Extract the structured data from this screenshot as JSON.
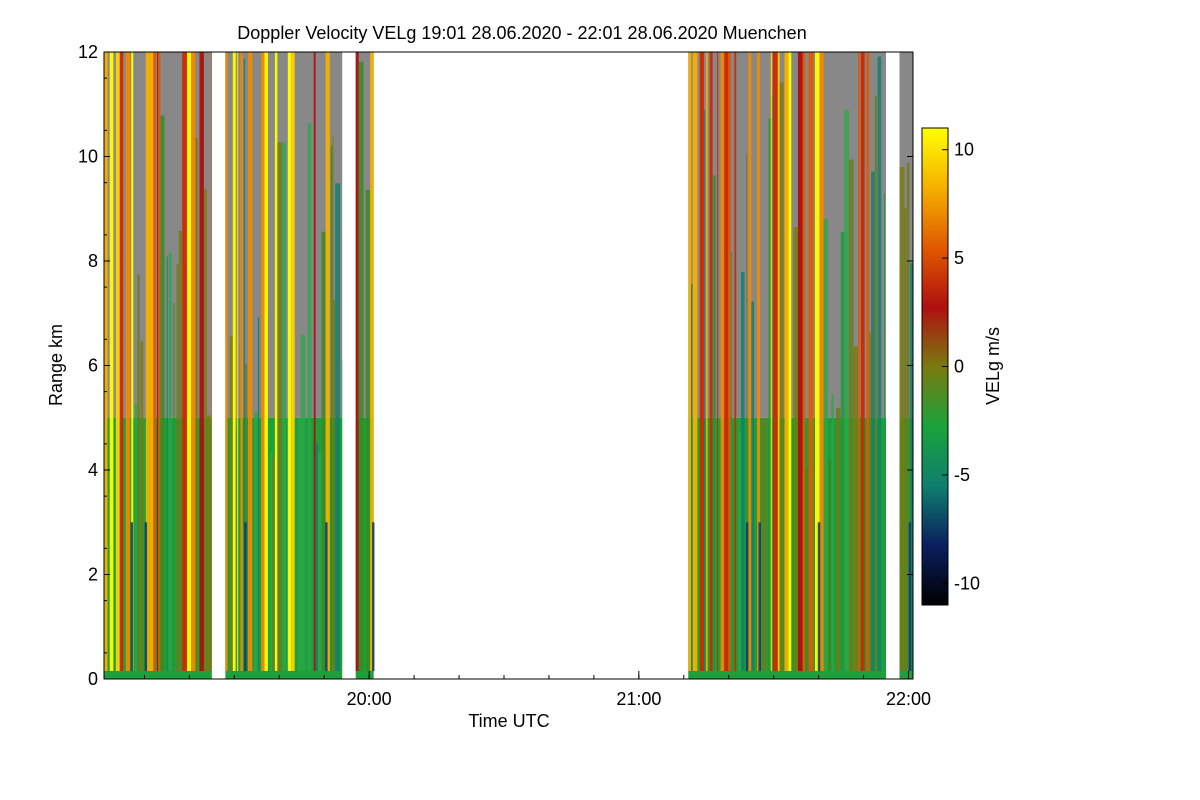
{
  "chart_data": {
    "type": "heatmap",
    "title": "Doppler Velocity VELg   19:01 28.06.2020 - 22:01 28.06.2020 Muenchen",
    "xlabel": "Time UTC",
    "ylabel": "Range km",
    "xlim": [
      "19:01",
      "22:01"
    ],
    "ylim": [
      0,
      12
    ],
    "y_ticks": [
      "0",
      "2",
      "4",
      "6",
      "8",
      "10",
      "12"
    ],
    "x_ticks": [
      "20:00",
      "21:00",
      "22:00"
    ],
    "colorbar": {
      "label": "VELg m/s",
      "range": [
        -11,
        11
      ],
      "ticks": [
        "10",
        "5",
        "0",
        "-5",
        "-10"
      ],
      "colors": [
        "#000000",
        "#0a1f5e",
        "#0e7f6e",
        "#1aa33a",
        "#7a7a10",
        "#b01010",
        "#e05a00",
        "#f5b000",
        "#ffff00"
      ]
    },
    "data_segments": [
      {
        "start": "19:01",
        "end": "19:25"
      },
      {
        "start": "19:28",
        "end": "19:54"
      },
      {
        "start": "19:57",
        "end": "20:01"
      },
      {
        "start": "21:11",
        "end": "21:55"
      },
      {
        "start": "21:58",
        "end": "22:01"
      }
    ],
    "no_data_color": "#888888"
  }
}
